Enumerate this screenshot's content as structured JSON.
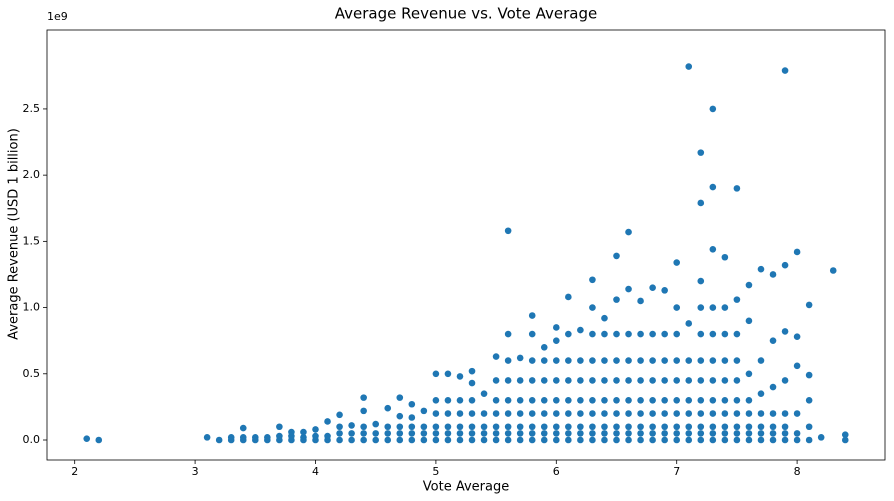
{
  "chart_data": {
    "type": "scatter",
    "title": "Average Revenue vs. Vote Average",
    "x_label": "Vote Average",
    "y_label": "Average Revenue (USD 1 billion)",
    "y_offset": "1e9",
    "color": "#1f77b4",
    "xlim": [
      1.77,
      8.73
    ],
    "ylim": [
      -0.151,
      3.096
    ],
    "xticks": [
      2,
      3,
      4,
      5,
      6,
      7,
      8
    ],
    "yticks": [
      {
        "value": 0,
        "label": "0.0"
      },
      0.5,
      {
        "value": 1,
        "label": "1.0"
      },
      1.5,
      {
        "value": 2,
        "label": "2.0"
      },
      2.5
    ],
    "grid": false,
    "x": [
      2.1,
      2.2,
      3.1,
      3.2,
      3.3,
      3.3,
      3.4,
      3.4,
      3.4,
      3.5,
      3.5,
      3.6,
      3.6,
      3.7,
      3.7,
      3.7,
      3.8,
      3.8,
      3.8,
      3.9,
      3.9,
      3.9,
      4.0,
      4.0,
      4.0,
      4.1,
      4.1,
      4.1,
      4.2,
      4.2,
      4.2,
      4.2,
      4.3,
      4.3,
      4.3,
      4.4,
      4.4,
      4.4,
      4.4,
      4.4,
      4.5,
      4.5,
      4.5,
      4.6,
      4.6,
      4.6,
      4.6,
      4.7,
      4.7,
      4.7,
      4.7,
      4.7,
      4.8,
      4.8,
      4.8,
      4.8,
      4.8,
      4.9,
      4.9,
      4.9,
      4.9,
      5.0,
      5.0,
      5.0,
      5.0,
      5.0,
      5.0,
      5.1,
      5.1,
      5.1,
      5.1,
      5.1,
      5.1,
      5.2,
      5.2,
      5.2,
      5.2,
      5.2,
      5.2,
      5.3,
      5.3,
      5.3,
      5.3,
      5.3,
      5.3,
      5.3,
      5.4,
      5.4,
      5.4,
      5.4,
      5.4,
      5.5,
      5.5,
      5.5,
      5.5,
      5.5,
      5.5,
      5.5,
      5.6,
      5.6,
      5.6,
      5.6,
      5.6,
      5.6,
      5.6,
      5.6,
      5.6,
      5.7,
      5.7,
      5.7,
      5.7,
      5.7,
      5.7,
      5.7,
      5.8,
      5.8,
      5.8,
      5.8,
      5.8,
      5.8,
      5.8,
      5.8,
      5.8,
      5.9,
      5.9,
      5.9,
      5.9,
      5.9,
      5.9,
      5.9,
      5.9,
      6.0,
      6.0,
      6.0,
      6.0,
      6.0,
      6.0,
      6.0,
      6.0,
      6.0,
      6.1,
      6.1,
      6.1,
      6.1,
      6.1,
      6.1,
      6.1,
      6.1,
      6.1,
      6.2,
      6.2,
      6.2,
      6.2,
      6.2,
      6.2,
      6.2,
      6.2,
      6.3,
      6.3,
      6.3,
      6.3,
      6.3,
      6.3,
      6.3,
      6.3,
      6.3,
      6.3,
      6.4,
      6.4,
      6.4,
      6.4,
      6.4,
      6.4,
      6.4,
      6.4,
      6.4,
      6.5,
      6.5,
      6.5,
      6.5,
      6.5,
      6.5,
      6.5,
      6.5,
      6.5,
      6.5,
      6.6,
      6.6,
      6.6,
      6.6,
      6.6,
      6.6,
      6.6,
      6.6,
      6.6,
      6.6,
      6.7,
      6.7,
      6.7,
      6.7,
      6.7,
      6.7,
      6.7,
      6.7,
      6.7,
      6.8,
      6.8,
      6.8,
      6.8,
      6.8,
      6.8,
      6.8,
      6.8,
      6.8,
      6.9,
      6.9,
      6.9,
      6.9,
      6.9,
      6.9,
      6.9,
      6.9,
      6.9,
      7.0,
      7.0,
      7.0,
      7.0,
      7.0,
      7.0,
      7.0,
      7.0,
      7.0,
      7.0,
      7.1,
      7.1,
      7.1,
      7.1,
      7.1,
      7.1,
      7.1,
      7.1,
      7.1,
      7.2,
      7.2,
      7.2,
      7.2,
      7.2,
      7.2,
      7.2,
      7.2,
      7.2,
      7.2,
      7.2,
      7.2,
      7.3,
      7.3,
      7.3,
      7.3,
      7.3,
      7.3,
      7.3,
      7.3,
      7.3,
      7.3,
      7.3,
      7.3,
      7.4,
      7.4,
      7.4,
      7.4,
      7.4,
      7.4,
      7.4,
      7.4,
      7.4,
      7.4,
      7.5,
      7.5,
      7.5,
      7.5,
      7.5,
      7.5,
      7.5,
      7.5,
      7.5,
      7.5,
      7.6,
      7.6,
      7.6,
      7.6,
      7.6,
      7.6,
      7.6,
      7.6,
      7.7,
      7.7,
      7.7,
      7.7,
      7.7,
      7.7,
      7.7,
      7.8,
      7.8,
      7.8,
      7.8,
      7.8,
      7.8,
      7.8,
      7.9,
      7.9,
      7.9,
      7.9,
      7.9,
      7.9,
      7.9,
      7.9,
      8.0,
      8.0,
      8.0,
      8.0,
      8.0,
      8.0,
      8.1,
      8.1,
      8.1,
      8.1,
      8.1,
      8.2,
      8.3,
      8.4,
      8.4
    ],
    "values": [
      0.01,
      0.0,
      0.02,
      0.0,
      0.0,
      0.02,
      0.0,
      0.02,
      0.09,
      0.0,
      0.02,
      0.0,
      0.02,
      0.0,
      0.03,
      0.1,
      0.0,
      0.03,
      0.06,
      0.0,
      0.02,
      0.06,
      0.0,
      0.03,
      0.08,
      0.0,
      0.03,
      0.14,
      0.0,
      0.05,
      0.1,
      0.19,
      0.0,
      0.05,
      0.11,
      0.0,
      0.05,
      0.1,
      0.22,
      0.32,
      0.0,
      0.05,
      0.12,
      0.0,
      0.05,
      0.1,
      0.24,
      0.0,
      0.05,
      0.1,
      0.18,
      0.32,
      0.0,
      0.05,
      0.1,
      0.17,
      0.27,
      0.0,
      0.05,
      0.1,
      0.22,
      0.0,
      0.05,
      0.1,
      0.2,
      0.3,
      0.5,
      0.0,
      0.05,
      0.1,
      0.2,
      0.3,
      0.5,
      0.0,
      0.05,
      0.1,
      0.2,
      0.3,
      0.48,
      0.0,
      0.05,
      0.1,
      0.2,
      0.3,
      0.43,
      0.52,
      0.0,
      0.05,
      0.1,
      0.2,
      0.35,
      0.0,
      0.05,
      0.1,
      0.2,
      0.3,
      0.45,
      0.63,
      0.0,
      0.05,
      0.1,
      0.2,
      0.3,
      0.45,
      0.6,
      0.8,
      1.58,
      0.0,
      0.05,
      0.1,
      0.2,
      0.3,
      0.45,
      0.62,
      0.0,
      0.05,
      0.1,
      0.2,
      0.3,
      0.45,
      0.6,
      0.8,
      0.94,
      0.0,
      0.05,
      0.1,
      0.2,
      0.3,
      0.45,
      0.6,
      0.7,
      0.0,
      0.05,
      0.1,
      0.2,
      0.3,
      0.45,
      0.6,
      0.75,
      0.85,
      0.0,
      0.05,
      0.1,
      0.2,
      0.3,
      0.45,
      0.6,
      0.8,
      1.08,
      0.0,
      0.05,
      0.1,
      0.2,
      0.3,
      0.45,
      0.6,
      0.83,
      0.0,
      0.05,
      0.1,
      0.2,
      0.3,
      0.45,
      0.6,
      0.8,
      1.0,
      1.21,
      0.0,
      0.05,
      0.1,
      0.2,
      0.3,
      0.45,
      0.6,
      0.8,
      0.92,
      0.0,
      0.05,
      0.1,
      0.2,
      0.3,
      0.45,
      0.6,
      0.8,
      1.06,
      1.39,
      0.0,
      0.05,
      0.1,
      0.2,
      0.3,
      0.45,
      0.6,
      0.8,
      1.14,
      1.57,
      0.0,
      0.05,
      0.1,
      0.2,
      0.3,
      0.45,
      0.6,
      0.8,
      1.05,
      0.0,
      0.05,
      0.1,
      0.2,
      0.3,
      0.45,
      0.6,
      0.8,
      1.15,
      0.0,
      0.05,
      0.1,
      0.2,
      0.3,
      0.45,
      0.6,
      0.8,
      1.13,
      0.0,
      0.05,
      0.1,
      0.2,
      0.3,
      0.45,
      0.6,
      0.8,
      1.0,
      1.34,
      0.0,
      0.05,
      0.1,
      0.2,
      0.3,
      0.45,
      0.6,
      0.88,
      2.82,
      0.0,
      0.05,
      0.1,
      0.2,
      0.3,
      0.45,
      0.6,
      0.8,
      1.0,
      1.2,
      1.79,
      2.17,
      0.0,
      0.05,
      0.1,
      0.2,
      0.3,
      0.45,
      0.6,
      0.8,
      1.0,
      1.44,
      1.91,
      2.5,
      0.0,
      0.05,
      0.1,
      0.2,
      0.3,
      0.45,
      0.6,
      0.8,
      1.0,
      1.38,
      0.0,
      0.05,
      0.1,
      0.2,
      0.3,
      0.45,
      0.6,
      0.8,
      1.06,
      1.9,
      0.0,
      0.05,
      0.1,
      0.2,
      0.3,
      0.5,
      0.9,
      1.17,
      0.0,
      0.05,
      0.1,
      0.2,
      0.35,
      0.6,
      1.29,
      0.0,
      0.05,
      0.1,
      0.2,
      0.4,
      0.75,
      1.25,
      0.0,
      0.05,
      0.1,
      0.2,
      0.45,
      0.82,
      1.32,
      2.79,
      0.0,
      0.05,
      0.2,
      0.56,
      0.78,
      1.42,
      0.0,
      0.1,
      0.3,
      0.49,
      1.02,
      0.02,
      1.28,
      0.0,
      0.04
    ]
  }
}
